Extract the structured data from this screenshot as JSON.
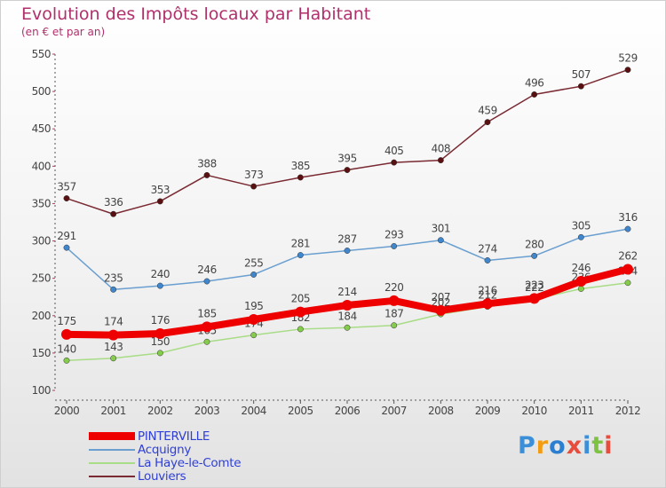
{
  "header": {
    "title": "Evolution des Impôts locaux par Habitant",
    "subtitle": "(en € et par an)"
  },
  "logo": {
    "text": "Proxiti",
    "colors": [
      "#3a8fd8",
      "#f39c12",
      "#2a7fd0",
      "#e74c3c",
      "#3a8fd8",
      "#7dc242",
      "#e74c3c"
    ]
  },
  "chart_data": {
    "type": "line",
    "x": [
      "2000",
      "2001",
      "2002",
      "2003",
      "2004",
      "2005",
      "2006",
      "2007",
      "2008",
      "2009",
      "2010",
      "2011",
      "2012"
    ],
    "ylim": [
      100,
      550
    ],
    "yticks": [
      100,
      150,
      200,
      250,
      300,
      350,
      400,
      450,
      500,
      550
    ],
    "grid": false,
    "legend_position": "bottom-left",
    "series": [
      {
        "name": "Louviers",
        "color": "#7a2a32",
        "marker": "#5a1010",
        "values": [
          357,
          336,
          353,
          388,
          373,
          385,
          395,
          405,
          408,
          459,
          496,
          507,
          529
        ]
      },
      {
        "name": "Acquigny",
        "color": "#6a9fd0",
        "marker": "#3f86cc",
        "values": [
          291,
          235,
          240,
          246,
          255,
          281,
          287,
          293,
          301,
          274,
          280,
          305,
          316
        ]
      },
      {
        "name": "La Haye-le-Comte",
        "color": "#a8dc86",
        "marker": "#86cc4c",
        "values": [
          140,
          143,
          150,
          165,
          174,
          182,
          184,
          187,
          202,
          212,
          222,
          236,
          244
        ]
      },
      {
        "name": "PINTERVILLE",
        "color": "#ee0000",
        "marker": "#ee0000",
        "values": [
          175,
          174,
          176,
          185,
          195,
          205,
          214,
          220,
          207,
          216,
          223,
          246,
          262
        ]
      }
    ]
  },
  "legend": {
    "items": [
      {
        "label": "PINTERVILLE",
        "color": "#ee0000",
        "thickness": 9
      },
      {
        "label": "Acquigny",
        "color": "#6a9fd0",
        "thickness": 2
      },
      {
        "label": "La Haye-le-Comte",
        "color": "#a8dc86",
        "thickness": 2
      },
      {
        "label": "Louviers",
        "color": "#7a2a32",
        "thickness": 2
      }
    ]
  }
}
